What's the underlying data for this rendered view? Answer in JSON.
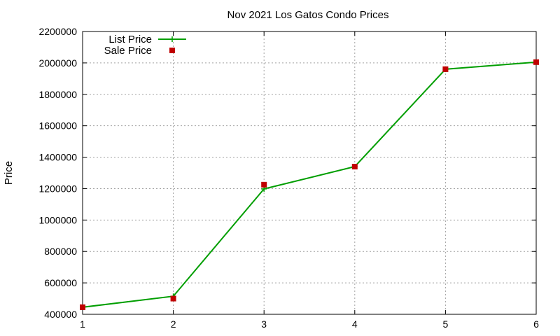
{
  "chart_data": {
    "type": "line",
    "title": "Nov 2021 Los Gatos Condo Prices",
    "xlabel": "",
    "ylabel": "Price",
    "xlim": [
      1,
      6
    ],
    "ylim": [
      400000,
      2200000
    ],
    "x_ticks": [
      "1",
      "2",
      "3",
      "4",
      "5",
      "6"
    ],
    "y_ticks": [
      "400000",
      "600000",
      "800000",
      "1000000",
      "1200000",
      "1400000",
      "1600000",
      "1800000",
      "2000000",
      "2200000"
    ],
    "grid": true,
    "legend_position": "top-left",
    "x": [
      1,
      2,
      3,
      4,
      5,
      6
    ],
    "series": [
      {
        "name": "List Price",
        "style": "line-with-plus-markers",
        "color": "#009e00",
        "values": [
          445000,
          515000,
          1198000,
          1340000,
          1960000,
          2005000
        ]
      },
      {
        "name": "Sale Price",
        "style": "square-markers",
        "color": "#c00000",
        "values": [
          445000,
          500000,
          1225000,
          1340000,
          1960000,
          2005000
        ]
      }
    ]
  }
}
